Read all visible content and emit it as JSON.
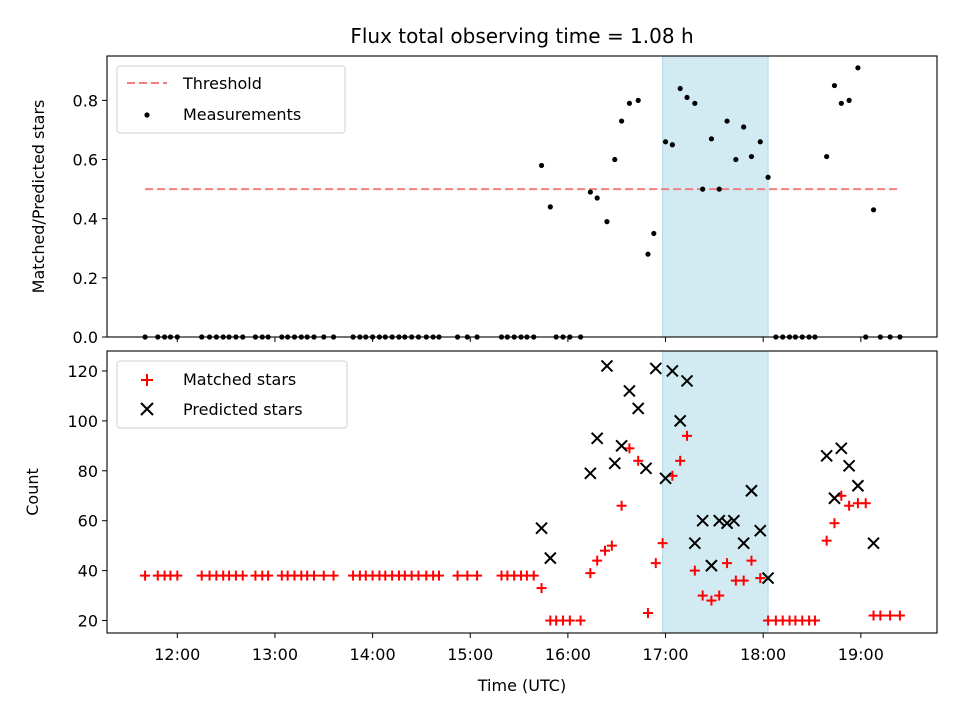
{
  "chart_data": [
    {
      "type": "scatter",
      "title": "Flux total observing time = 1.08 h",
      "xlabel": "",
      "ylabel": "Matched/Predicted stars",
      "xlim": [
        11.28,
        19.78
      ],
      "ylim": [
        0,
        0.95
      ],
      "yticks": [
        0.0,
        0.2,
        0.4,
        0.6,
        0.8
      ],
      "ytick_labels": [
        "0.0",
        "0.2",
        "0.4",
        "0.6",
        "0.8"
      ],
      "shaded_x_range": [
        16.97,
        18.05
      ],
      "shaded_color": "#add8e6",
      "legend_position": "upper-left",
      "threshold": {
        "name": "Threshold",
        "value": 0.5,
        "x_range": [
          11.67,
          19.4
        ],
        "color": "#f08080",
        "style": "dashed"
      },
      "series": [
        {
          "name": "Measurements",
          "color": "#000000",
          "marker": "dot",
          "x": [
            11.67,
            11.8,
            11.87,
            11.93,
            12.0,
            12.25,
            12.33,
            12.4,
            12.47,
            12.53,
            12.6,
            12.67,
            12.8,
            12.87,
            12.93,
            13.07,
            13.13,
            13.2,
            13.27,
            13.33,
            13.4,
            13.5,
            13.6,
            13.8,
            13.87,
            13.93,
            14.0,
            14.07,
            14.13,
            14.2,
            14.27,
            14.33,
            14.4,
            14.47,
            14.55,
            14.62,
            14.68,
            14.87,
            14.97,
            15.07,
            15.32,
            15.38,
            15.45,
            15.52,
            15.58,
            15.65,
            15.73,
            15.82,
            15.88,
            15.95,
            16.02,
            16.13,
            16.23,
            16.3,
            16.4,
            16.48,
            16.55,
            16.63,
            16.72,
            16.82,
            16.88,
            17.0,
            17.07,
            17.15,
            17.22,
            17.3,
            17.38,
            17.47,
            17.55,
            17.63,
            17.72,
            17.8,
            17.88,
            17.97,
            18.05,
            18.13,
            18.2,
            18.27,
            18.33,
            18.4,
            18.47,
            18.53,
            18.65,
            18.73,
            18.8,
            18.88,
            18.97,
            19.05,
            19.13,
            19.2,
            19.3,
            19.4
          ],
          "y": [
            0,
            0,
            0,
            0,
            0,
            0,
            0,
            0,
            0,
            0,
            0,
            0,
            0,
            0,
            0,
            0,
            0,
            0,
            0,
            0,
            0,
            0,
            0,
            0,
            0,
            0,
            0,
            0,
            0,
            0,
            0,
            0,
            0,
            0,
            0,
            0,
            0,
            0,
            0,
            0,
            0,
            0,
            0,
            0,
            0,
            0,
            0.58,
            0.44,
            0,
            0,
            0,
            0,
            0.49,
            0.47,
            0.39,
            0.6,
            0.73,
            0.79,
            0.8,
            0.28,
            0.35,
            0.66,
            0.65,
            0.84,
            0.81,
            0.79,
            0.5,
            0.67,
            0.5,
            0.73,
            0.6,
            0.71,
            0.61,
            0.66,
            0.54,
            0,
            0,
            0,
            0,
            0,
            0,
            0,
            0.61,
            0.85,
            0.79,
            0.8,
            0.91,
            0,
            0.43,
            0,
            0,
            0
          ]
        }
      ]
    },
    {
      "type": "scatter",
      "title": "",
      "xlabel": "Time (UTC)",
      "ylabel": "Count",
      "xlim": [
        11.28,
        19.78
      ],
      "ylim": [
        15,
        128
      ],
      "yticks": [
        20,
        40,
        60,
        80,
        100,
        120
      ],
      "ytick_labels": [
        "20",
        "40",
        "60",
        "80",
        "100",
        "120"
      ],
      "xticks": [
        12,
        13,
        14,
        15,
        16,
        17,
        18,
        19
      ],
      "xtick_labels": [
        "12:00",
        "13:00",
        "14:00",
        "15:00",
        "16:00",
        "17:00",
        "18:00",
        "19:00"
      ],
      "shaded_x_range": [
        16.97,
        18.05
      ],
      "shaded_color": "#add8e6",
      "legend_position": "upper-left",
      "series": [
        {
          "name": "Matched stars",
          "color": "#ff0000",
          "marker": "plus",
          "x": [
            11.67,
            11.8,
            11.87,
            11.93,
            12.0,
            12.25,
            12.33,
            12.4,
            12.47,
            12.53,
            12.6,
            12.67,
            12.8,
            12.87,
            12.93,
            13.07,
            13.13,
            13.2,
            13.27,
            13.33,
            13.4,
            13.5,
            13.6,
            13.8,
            13.87,
            13.93,
            14.0,
            14.07,
            14.13,
            14.2,
            14.27,
            14.33,
            14.4,
            14.47,
            14.55,
            14.62,
            14.68,
            14.87,
            14.97,
            15.07,
            15.32,
            15.38,
            15.45,
            15.52,
            15.58,
            15.65,
            15.73,
            15.82,
            15.88,
            15.95,
            16.02,
            16.13,
            16.23,
            16.3,
            16.38,
            16.45,
            16.55,
            16.63,
            16.72,
            16.82,
            16.9,
            16.97,
            17.07,
            17.15,
            17.22,
            17.3,
            17.38,
            17.47,
            17.55,
            17.63,
            17.72,
            17.8,
            17.88,
            17.97,
            18.05,
            18.13,
            18.2,
            18.27,
            18.33,
            18.4,
            18.47,
            18.53,
            18.65,
            18.73,
            18.8,
            18.88,
            18.97,
            19.05,
            19.13,
            19.2,
            19.3,
            19.4
          ],
          "y": [
            38,
            38,
            38,
            38,
            38,
            38,
            38,
            38,
            38,
            38,
            38,
            38,
            38,
            38,
            38,
            38,
            38,
            38,
            38,
            38,
            38,
            38,
            38,
            38,
            38,
            38,
            38,
            38,
            38,
            38,
            38,
            38,
            38,
            38,
            38,
            38,
            38,
            38,
            38,
            38,
            38,
            38,
            38,
            38,
            38,
            38,
            33,
            20,
            20,
            20,
            20,
            20,
            39,
            44,
            48,
            50,
            66,
            89,
            84,
            23,
            43,
            51,
            78,
            84,
            94,
            40,
            30,
            28,
            30,
            43,
            36,
            36,
            44,
            37,
            20,
            20,
            20,
            20,
            20,
            20,
            20,
            20,
            52,
            59,
            70,
            66,
            67,
            67,
            22,
            22,
            22,
            22
          ]
        },
        {
          "name": "Predicted stars",
          "color": "#000000",
          "marker": "x",
          "x": [
            15.73,
            15.82,
            16.23,
            16.3,
            16.4,
            16.48,
            16.55,
            16.63,
            16.72,
            16.8,
            16.9,
            17.0,
            17.07,
            17.15,
            17.22,
            17.3,
            17.38,
            17.47,
            17.55,
            17.63,
            17.7,
            17.8,
            17.88,
            17.97,
            18.05,
            18.65,
            18.73,
            18.8,
            18.88,
            18.97,
            19.13
          ],
          "y": [
            57,
            45,
            79,
            93,
            122,
            83,
            90,
            112,
            105,
            81,
            121,
            77,
            120,
            100,
            116,
            51,
            60,
            42,
            60,
            59,
            60,
            51,
            72,
            56,
            37,
            86,
            69,
            89,
            82,
            74,
            51
          ]
        }
      ]
    }
  ]
}
